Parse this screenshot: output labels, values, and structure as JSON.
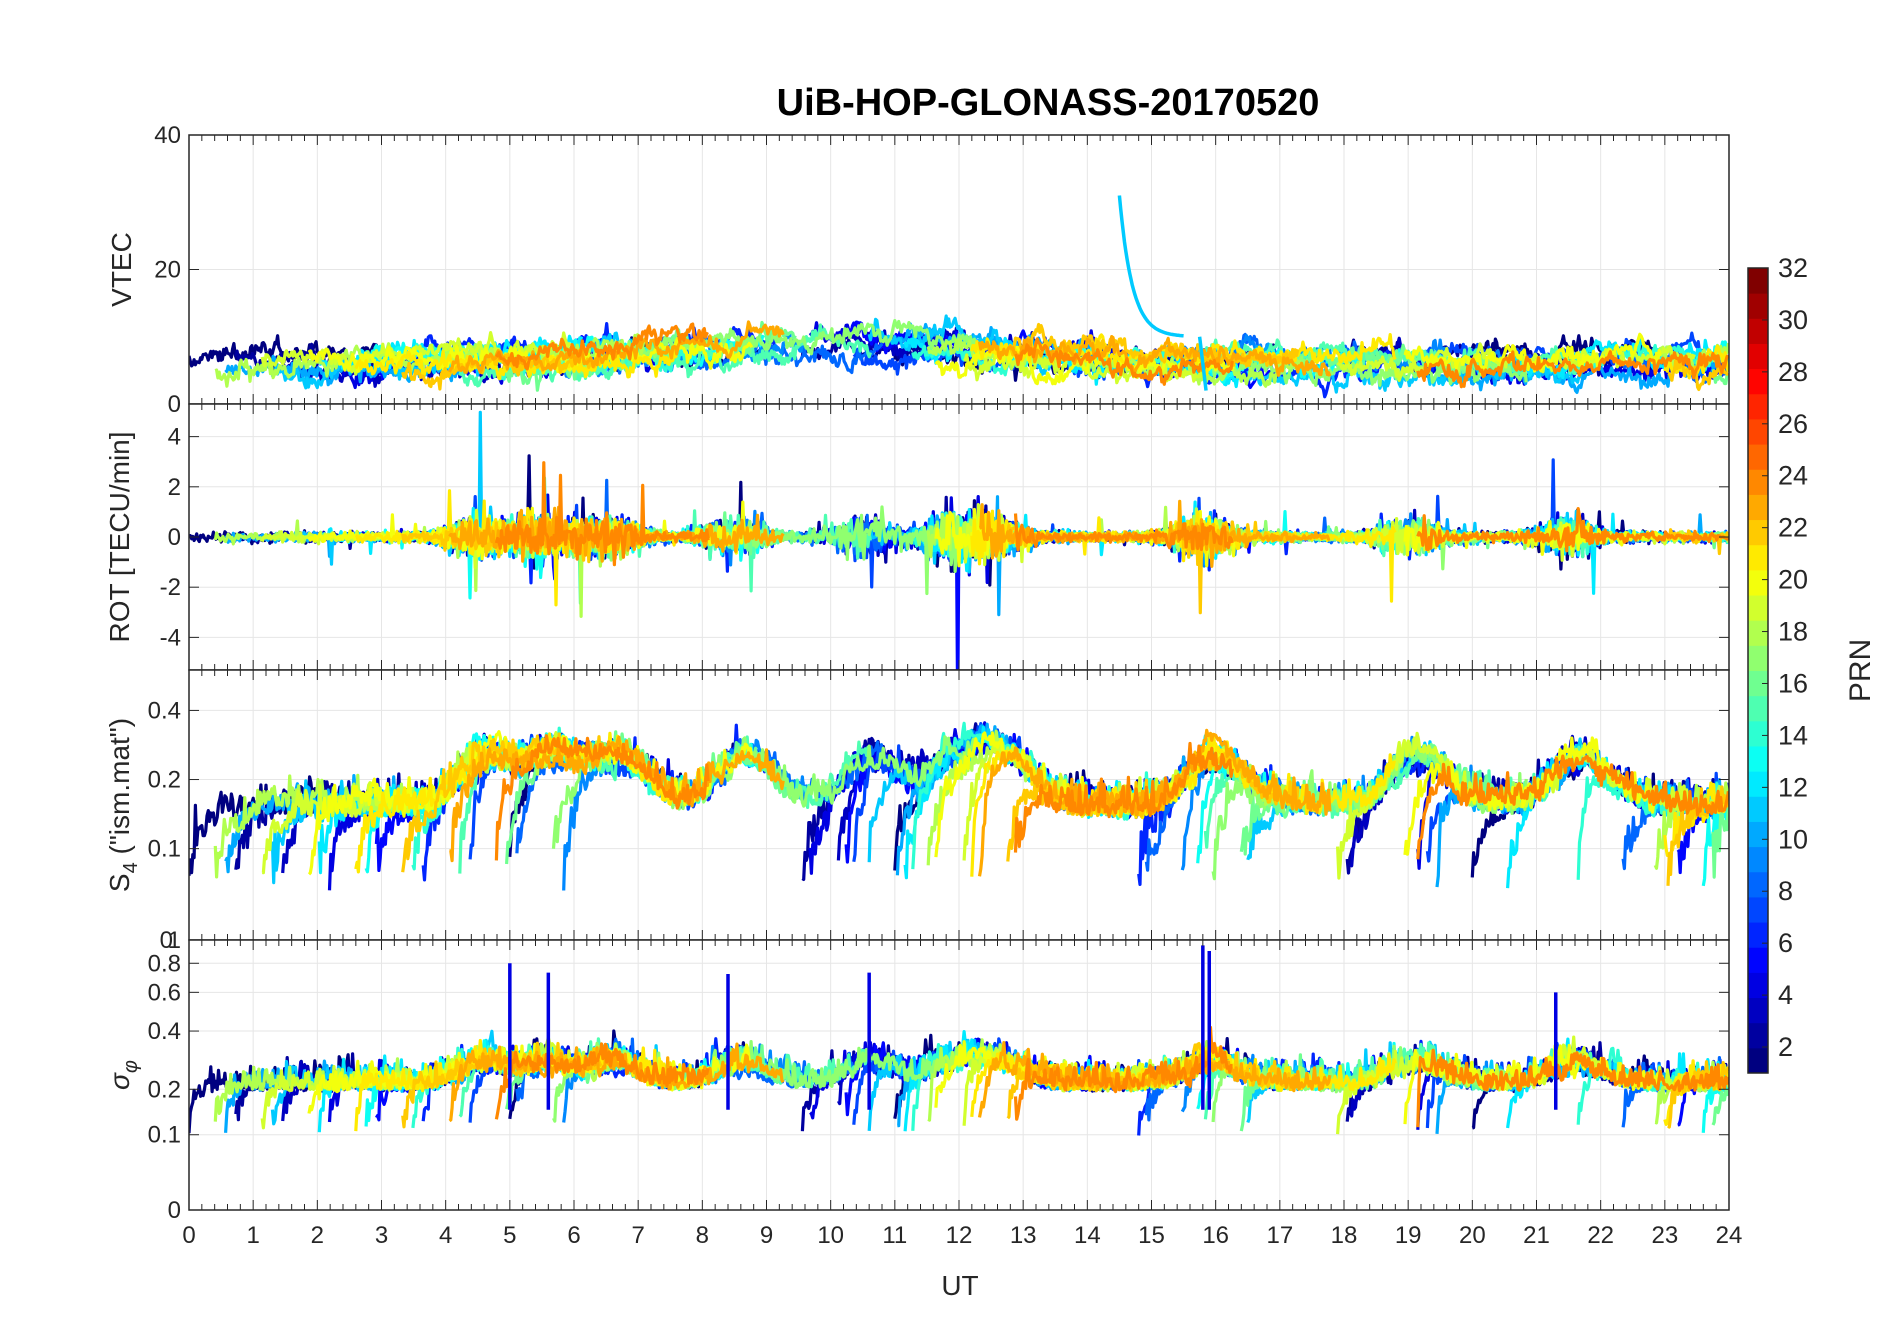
{
  "chart_data": [
    {
      "type": "line",
      "panel": "vtec",
      "title": "UiB-HOP-GLONASS-20170520",
      "xlabel": "",
      "ylabel": "VTEC",
      "xlim": [
        0,
        24
      ],
      "ylim": [
        0,
        40
      ],
      "yticks": [
        0,
        20,
        40
      ],
      "grid": true,
      "baseline_range": [
        5,
        12
      ],
      "annotations": [
        "PRN 11 spike near UT 14.5–15.5 starting ~31 TECU decaying to ~10",
        "PRN 11 drop near UT 15.8–15.9 from ~10 to ~2"
      ]
    },
    {
      "type": "line",
      "panel": "rot",
      "xlabel": "",
      "ylabel": "ROT [TECU/min]",
      "xlim": [
        0,
        24
      ],
      "ylim": [
        -5.3,
        5.3
      ],
      "yticks": [
        -4,
        -2,
        0,
        2,
        4
      ],
      "grid": true,
      "activity_peaks_UT": [
        4.5,
        5.5,
        6.5,
        8.5,
        10.5,
        11.8,
        12.5,
        15.8,
        19,
        21.5
      ]
    },
    {
      "type": "line",
      "panel": "s4",
      "xlabel": "",
      "ylabel_main": "S",
      "ylabel_sub": "4",
      "ylabel_tail": " (\"ism.mat\")",
      "xlim": [
        0,
        24
      ],
      "ylim": [
        0.04,
        0.6
      ],
      "yscale": "log",
      "ytick_values": [
        0.1,
        0.2,
        0.4
      ],
      "ytick_labels": [
        "0.1",
        "0.2",
        "0.4"
      ],
      "bottom_tick_labels": [
        "0",
        "1"
      ],
      "grid": true
    },
    {
      "type": "line",
      "panel": "sigma_phi",
      "xlabel": "UT",
      "ylabel_main": "σ",
      "ylabel_sub": "φ",
      "xlim": [
        0,
        24
      ],
      "xticks": [
        0,
        1,
        2,
        3,
        4,
        5,
        6,
        7,
        8,
        9,
        10,
        11,
        12,
        13,
        14,
        15,
        16,
        17,
        18,
        19,
        20,
        21,
        22,
        23,
        24
      ],
      "ylim": [
        0,
        1.0
      ],
      "yscale": "log1p",
      "ytick_values": [
        0,
        0.1,
        0.2,
        0.4,
        0.6,
        0.8
      ],
      "ytick_labels": [
        "0",
        "0.1",
        "0.2",
        "0.4",
        "0.6",
        "0.8"
      ],
      "grid": true,
      "notable_peaks": [
        {
          "ut": 5.0,
          "value": 0.8
        },
        {
          "ut": 5.6,
          "value": 0.73
        },
        {
          "ut": 8.4,
          "value": 0.72
        },
        {
          "ut": 10.6,
          "value": 0.73
        },
        {
          "ut": 15.8,
          "value": 0.95
        },
        {
          "ut": 15.9,
          "value": 0.9
        },
        {
          "ut": 21.3,
          "value": 0.6
        }
      ]
    }
  ],
  "colorbar": {
    "label": "PRN",
    "min": 1,
    "max": 32,
    "ticks": [
      "2",
      "4",
      "6",
      "8",
      "10",
      "12",
      "14",
      "16",
      "18",
      "20",
      "22",
      "24",
      "26",
      "28",
      "30",
      "32"
    ],
    "colormap": "jet",
    "levels": 32
  },
  "colors": {
    "grid": "#e6e6e6",
    "axis": "#262626",
    "background": "#ffffff"
  }
}
